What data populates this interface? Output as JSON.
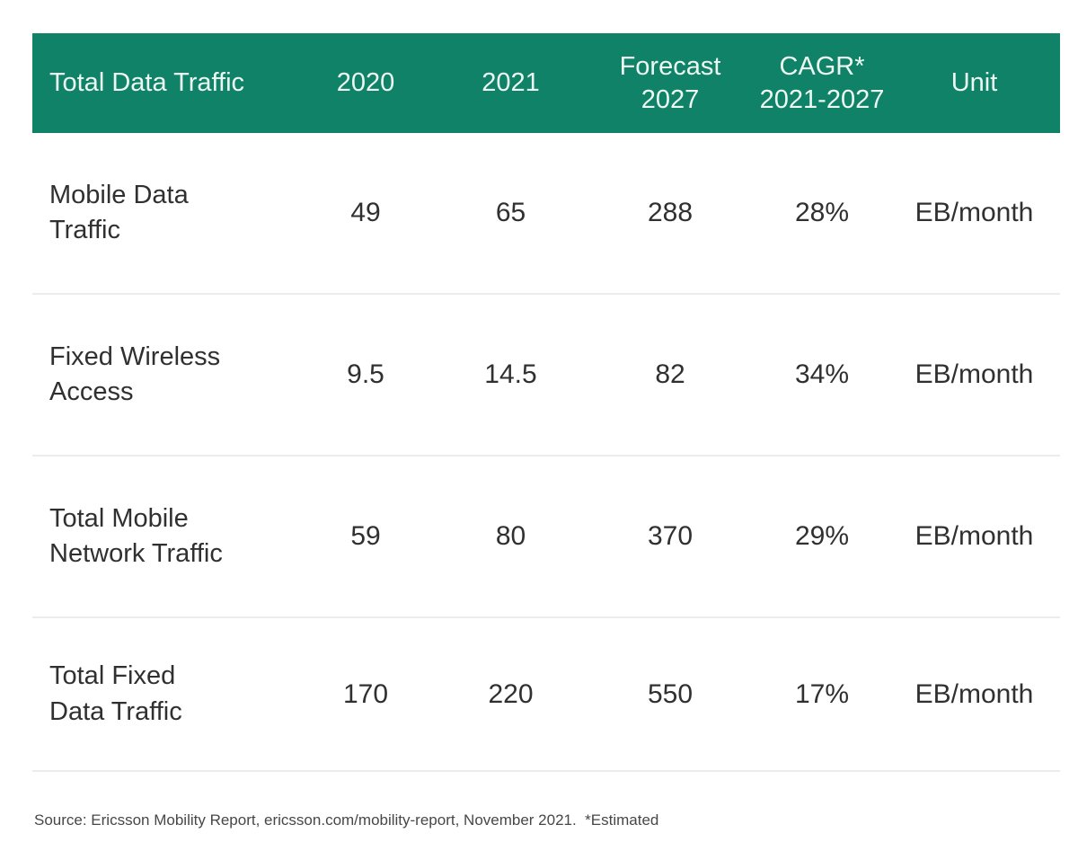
{
  "colors": {
    "header_bg": "#0f8267",
    "header_text": "#eef8f3",
    "body_text": "#303030",
    "divider": "#ececec",
    "source_text": "#474747"
  },
  "table": {
    "header": {
      "title": "Total Data Traffic",
      "col_2020": "2020",
      "col_2021": "2021",
      "col_forecast": "Forecast\n2027",
      "col_cagr": "CAGR*\n2021-2027",
      "col_unit": "Unit"
    },
    "rows": [
      {
        "label": "Mobile Data\nTraffic",
        "y2020": "49",
        "y2021": "65",
        "forecast_2027": "288",
        "cagr": "28%",
        "unit": "EB/month"
      },
      {
        "label": "Fixed Wireless\nAccess",
        "y2020": "9.5",
        "y2021": "14.5",
        "forecast_2027": "82",
        "cagr": "34%",
        "unit": "EB/month"
      },
      {
        "label": "Total Mobile\nNetwork Traffic",
        "y2020": "59",
        "y2021": "80",
        "forecast_2027": "370",
        "cagr": "29%",
        "unit": "EB/month"
      },
      {
        "label": "Total Fixed\nData Traffic",
        "y2020": "170",
        "y2021": "220",
        "forecast_2027": "550",
        "cagr": "17%",
        "unit": "EB/month"
      }
    ]
  },
  "source_note": "Source: Ericsson Mobility Report, ericsson.com/mobility-report, November 2021.  *Estimated",
  "chart_data": {
    "type": "table",
    "title": "Total Data Traffic",
    "columns": [
      "Total Data Traffic",
      "2020",
      "2021",
      "Forecast 2027",
      "CAGR* 2021-2027",
      "Unit"
    ],
    "rows": [
      [
        "Mobile Data Traffic",
        49,
        65,
        288,
        "28%",
        "EB/month"
      ],
      [
        "Fixed Wireless Access",
        9.5,
        14.5,
        82,
        "34%",
        "EB/month"
      ],
      [
        "Total Mobile Network Traffic",
        59,
        80,
        370,
        "29%",
        "EB/month"
      ],
      [
        "Total Fixed Data Traffic",
        170,
        220,
        550,
        "17%",
        "EB/month"
      ]
    ],
    "source": "Source: Ericsson Mobility Report, ericsson.com/mobility-report, November 2021.  *Estimated"
  }
}
